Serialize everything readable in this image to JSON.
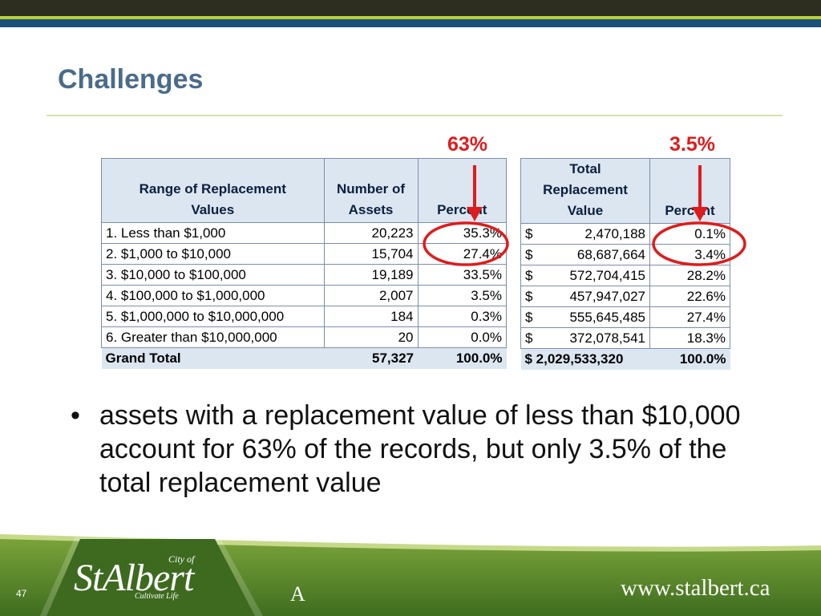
{
  "slide": {
    "title": "Challenges",
    "page_number": "47",
    "footer_letter": "A",
    "url": "www.stalbert.ca"
  },
  "logo": {
    "city_of": "City of",
    "name": "StAlbert",
    "tagline": "Cultivate Life"
  },
  "callouts": {
    "left": "63%",
    "right": "3.5%"
  },
  "colors": {
    "accent_red": "#e01b1b",
    "title_blue": "#4a6b8a",
    "header_fill": "#dce6f1",
    "footer_green": "#5a8a28",
    "top_band": "#2d2e1f",
    "top_navy": "#1d4f7c",
    "top_green": "#b9cf33"
  },
  "left_table": {
    "headers": [
      "Range of Replacement Values",
      "Number of Assets",
      "Percent"
    ],
    "rows": [
      {
        "range": "1. Less than $1,000",
        "count": "20,223",
        "percent": "35.3%"
      },
      {
        "range": "2. $1,000 to $10,000",
        "count": "15,704",
        "percent": "27.4%"
      },
      {
        "range": "3. $10,000 to $100,000",
        "count": "19,189",
        "percent": "33.5%"
      },
      {
        "range": "4. $100,000 to $1,000,000",
        "count": "2,007",
        "percent": "3.5%"
      },
      {
        "range": "5. $1,000,000 to $10,000,000",
        "count": "184",
        "percent": "0.3%"
      },
      {
        "range": "6. Greater than $10,000,000",
        "count": "20",
        "percent": "0.0%"
      }
    ],
    "total": {
      "label": "Grand Total",
      "count": "57,327",
      "percent": "100.0%"
    }
  },
  "right_table": {
    "headers": [
      "Total Replacement Value",
      "Percent"
    ],
    "currency_symbol": "$",
    "rows": [
      {
        "value": "2,470,188",
        "percent": "0.1%"
      },
      {
        "value": "68,687,664",
        "percent": "3.4%"
      },
      {
        "value": "572,704,415",
        "percent": "28.2%"
      },
      {
        "value": "457,947,027",
        "percent": "22.6%"
      },
      {
        "value": "555,645,485",
        "percent": "27.4%"
      },
      {
        "value": "372,078,541",
        "percent": "18.3%"
      }
    ],
    "total": {
      "value": "$ 2,029,533,320",
      "percent": "100.0%"
    }
  },
  "bullet": {
    "symbol": "•",
    "text": "assets with a replacement value of less than $10,000 account for 63% of the records, but only 3.5% of the total replacement value"
  }
}
